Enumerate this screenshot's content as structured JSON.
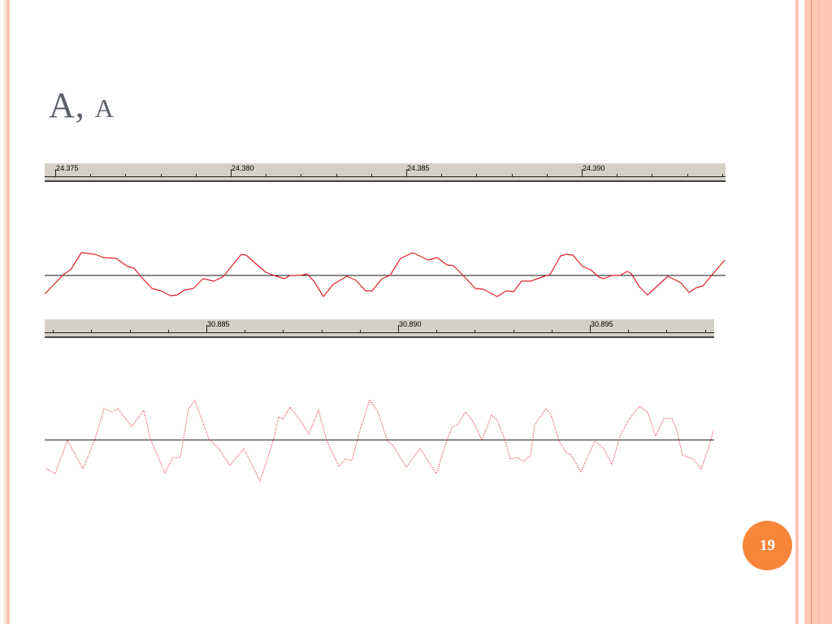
{
  "slide": {
    "title_main": "A,",
    "title_smallcaps": "A",
    "page_number": "19"
  },
  "waveform_top": {
    "ruler_labels": [
      "24.375",
      "24.380",
      "24.385",
      "24.390"
    ],
    "wave_color": "#e0202a"
  },
  "waveform_bottom": {
    "ruler_labels": [
      "30.885",
      "30.890",
      "30.895"
    ],
    "wave_color": "#e0202a"
  },
  "colors": {
    "accent": "#f7853a",
    "stripe_peach": "#fdc8b4",
    "stripe_pink": "#f9c2b8",
    "title": "#5a5f6b"
  }
}
